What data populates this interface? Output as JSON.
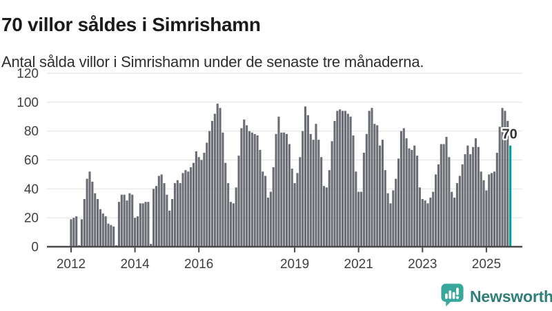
{
  "header": {
    "title": "70 villor såldes i Simrishamn",
    "subtitle": "Antal sålda villor i Simrishamn under de senaste tre månaderna."
  },
  "footer": {
    "brand": "Newsworthy"
  },
  "colors": {
    "bar": "#6A6D73",
    "highlight": "#00A0A0",
    "grid": "#E3E3E3",
    "axis": "#4A4A4A",
    "tick_label": "#3F3F3F",
    "annotation": "#333333",
    "logo_icon": "#3AA79D",
    "logo_text": "#2F7E79",
    "title": "#1B1B1B",
    "subtitle": "#2E2E2E"
  },
  "chart_data": {
    "type": "bar",
    "title": "70 villor såldes i Simrishamn",
    "subtitle": "Antal sålda villor i Simrishamn under de senaste tre månaderna.",
    "frequency": "monthly",
    "series_start": "2012-01",
    "series_end": "2025-10",
    "ylabel": "",
    "xlabel": "",
    "ylim": [
      0,
      120
    ],
    "y_ticks": [
      0,
      20,
      40,
      60,
      80,
      100,
      120
    ],
    "x_tick_labels": [
      "2012",
      "2014",
      "2016",
      "2019",
      "2021",
      "2023",
      "2025"
    ],
    "grid": "horizontal",
    "legend": "none",
    "values": [
      19,
      20,
      21,
      1,
      19,
      33,
      47,
      52,
      45,
      37,
      33,
      26,
      23,
      21,
      16,
      15,
      14,
      1,
      31,
      36,
      36,
      32,
      37,
      36,
      20,
      21,
      30,
      30,
      31,
      31,
      2,
      40,
      42,
      49,
      50,
      44,
      36,
      25,
      33,
      44,
      46,
      44,
      51,
      53,
      52,
      55,
      58,
      66,
      62,
      60,
      65,
      72,
      80,
      87,
      92,
      99,
      96,
      79,
      58,
      44,
      31,
      30,
      41,
      63,
      82,
      88,
      84,
      80,
      79,
      78,
      77,
      67,
      52,
      49,
      34,
      38,
      55,
      78,
      90,
      79,
      79,
      78,
      71,
      54,
      44,
      51,
      62,
      80,
      97,
      91,
      78,
      74,
      85,
      74,
      62,
      42,
      41,
      53,
      73,
      87,
      94,
      95,
      94,
      94,
      92,
      90,
      77,
      52,
      38,
      38,
      65,
      78,
      94,
      96,
      85,
      84,
      70,
      74,
      53,
      37,
      30,
      39,
      47,
      61,
      80,
      82,
      75,
      68,
      67,
      70,
      63,
      41,
      33,
      32,
      30,
      34,
      38,
      50,
      57,
      71,
      71,
      76,
      62,
      38,
      34,
      44,
      49,
      57,
      64,
      70,
      64,
      69,
      75,
      69,
      52,
      46,
      39,
      50,
      51,
      52,
      65,
      83,
      96,
      94,
      87,
      70
    ],
    "highlight": {
      "index": 165,
      "value": 70,
      "label": "70"
    }
  }
}
